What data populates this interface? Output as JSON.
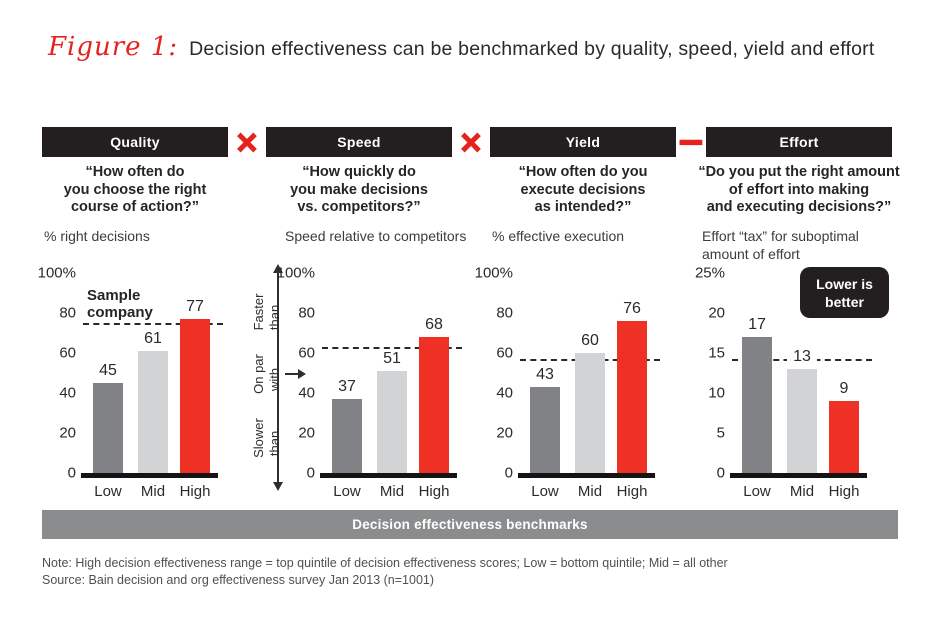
{
  "title": {
    "figure_label": "Figure 1:",
    "text": "Decision effectiveness can be benchmarked by quality, speed, yield and effort"
  },
  "operators": {
    "after_quality": "×",
    "after_speed": "×",
    "after_yield": "−"
  },
  "colors": {
    "accent_red": "#e5231e",
    "bar_low": "#808285",
    "bar_mid": "#d1d3d4",
    "bar_high": "#ee3124",
    "header_black": "#231f20",
    "benchmark_footer_gray": "#8a8c8e"
  },
  "footer": {
    "benchmark_label": "Decision effectiveness benchmarks",
    "note": "Note: High decision effectiveness range = top quintile of decision effectiveness scores; Low = bottom quintile; Mid = all other",
    "source": "Source: Bain decision and org effectiveness survey Jan 2013 (n=1001)"
  },
  "chart_data": [
    {
      "type": "bar",
      "title": "Quality",
      "question": [
        "“How often do",
        "you choose the right",
        "course of action?”"
      ],
      "measure": [
        "% right decisions"
      ],
      "categories": [
        "Low",
        "Mid",
        "High"
      ],
      "values": [
        45,
        61,
        77
      ],
      "ylim": [
        0,
        100
      ],
      "ticks": [
        {
          "label": "100%",
          "v": 100
        },
        {
          "label": "80",
          "v": 80
        },
        {
          "label": "60",
          "v": 60
        },
        {
          "label": "40",
          "v": 40
        },
        {
          "label": "20",
          "v": 20
        },
        {
          "label": "0",
          "v": 0
        }
      ],
      "benchmark_line": 74,
      "annotation": [
        "Sample",
        "company"
      ],
      "legend_position": "none",
      "grid": false
    },
    {
      "type": "bar",
      "title": "Speed",
      "question": [
        "“How quickly do",
        "you make decisions",
        "vs. competitors?”"
      ],
      "measure": [
        "Speed relative to competitors"
      ],
      "categories": [
        "Low",
        "Mid",
        "High"
      ],
      "values": [
        37,
        51,
        68
      ],
      "ylim": [
        0,
        100
      ],
      "ticks": [
        {
          "label": "100%",
          "v": 100
        },
        {
          "label": "80",
          "v": 80
        },
        {
          "label": "60",
          "v": 60
        },
        {
          "label": "40",
          "v": 40
        },
        {
          "label": "20",
          "v": 20
        },
        {
          "label": "0",
          "v": 0
        }
      ],
      "benchmark_line": 62,
      "axis_annotations": {
        "faster": [
          "Faster",
          "than..."
        ],
        "onpar": [
          "On par",
          "with..."
        ],
        "slower": [
          "Slower",
          "than..."
        ]
      },
      "legend_position": "none",
      "grid": false
    },
    {
      "type": "bar",
      "title": "Yield",
      "question": [
        "“How often do you",
        "execute decisions",
        "as intended?”"
      ],
      "measure": [
        "% effective execution"
      ],
      "categories": [
        "Low",
        "Mid",
        "High"
      ],
      "values": [
        43,
        60,
        76
      ],
      "ylim": [
        0,
        100
      ],
      "ticks": [
        {
          "label": "100%",
          "v": 100
        },
        {
          "label": "80",
          "v": 80
        },
        {
          "label": "60",
          "v": 60
        },
        {
          "label": "40",
          "v": 40
        },
        {
          "label": "20",
          "v": 20
        },
        {
          "label": "0",
          "v": 0
        }
      ],
      "benchmark_line": 56,
      "legend_position": "none",
      "grid": false
    },
    {
      "type": "bar",
      "title": "Effort",
      "question": [
        "“Do you put the right amount",
        "of effort into making",
        "and executing decisions?”"
      ],
      "measure": [
        "Effort “tax” for suboptimal",
        "amount of effort"
      ],
      "categories": [
        "Low",
        "Mid",
        "High"
      ],
      "values": [
        17,
        13,
        9
      ],
      "ylim": [
        0,
        25
      ],
      "ticks": [
        {
          "label": "25%",
          "v": 25
        },
        {
          "label": "20",
          "v": 20
        },
        {
          "label": "15",
          "v": 15
        },
        {
          "label": "10",
          "v": 10
        },
        {
          "label": "5",
          "v": 5
        },
        {
          "label": "0",
          "v": 0
        }
      ],
      "benchmark_line": 14,
      "badge": [
        "Lower is",
        "better"
      ],
      "legend_position": "none",
      "grid": false
    }
  ]
}
